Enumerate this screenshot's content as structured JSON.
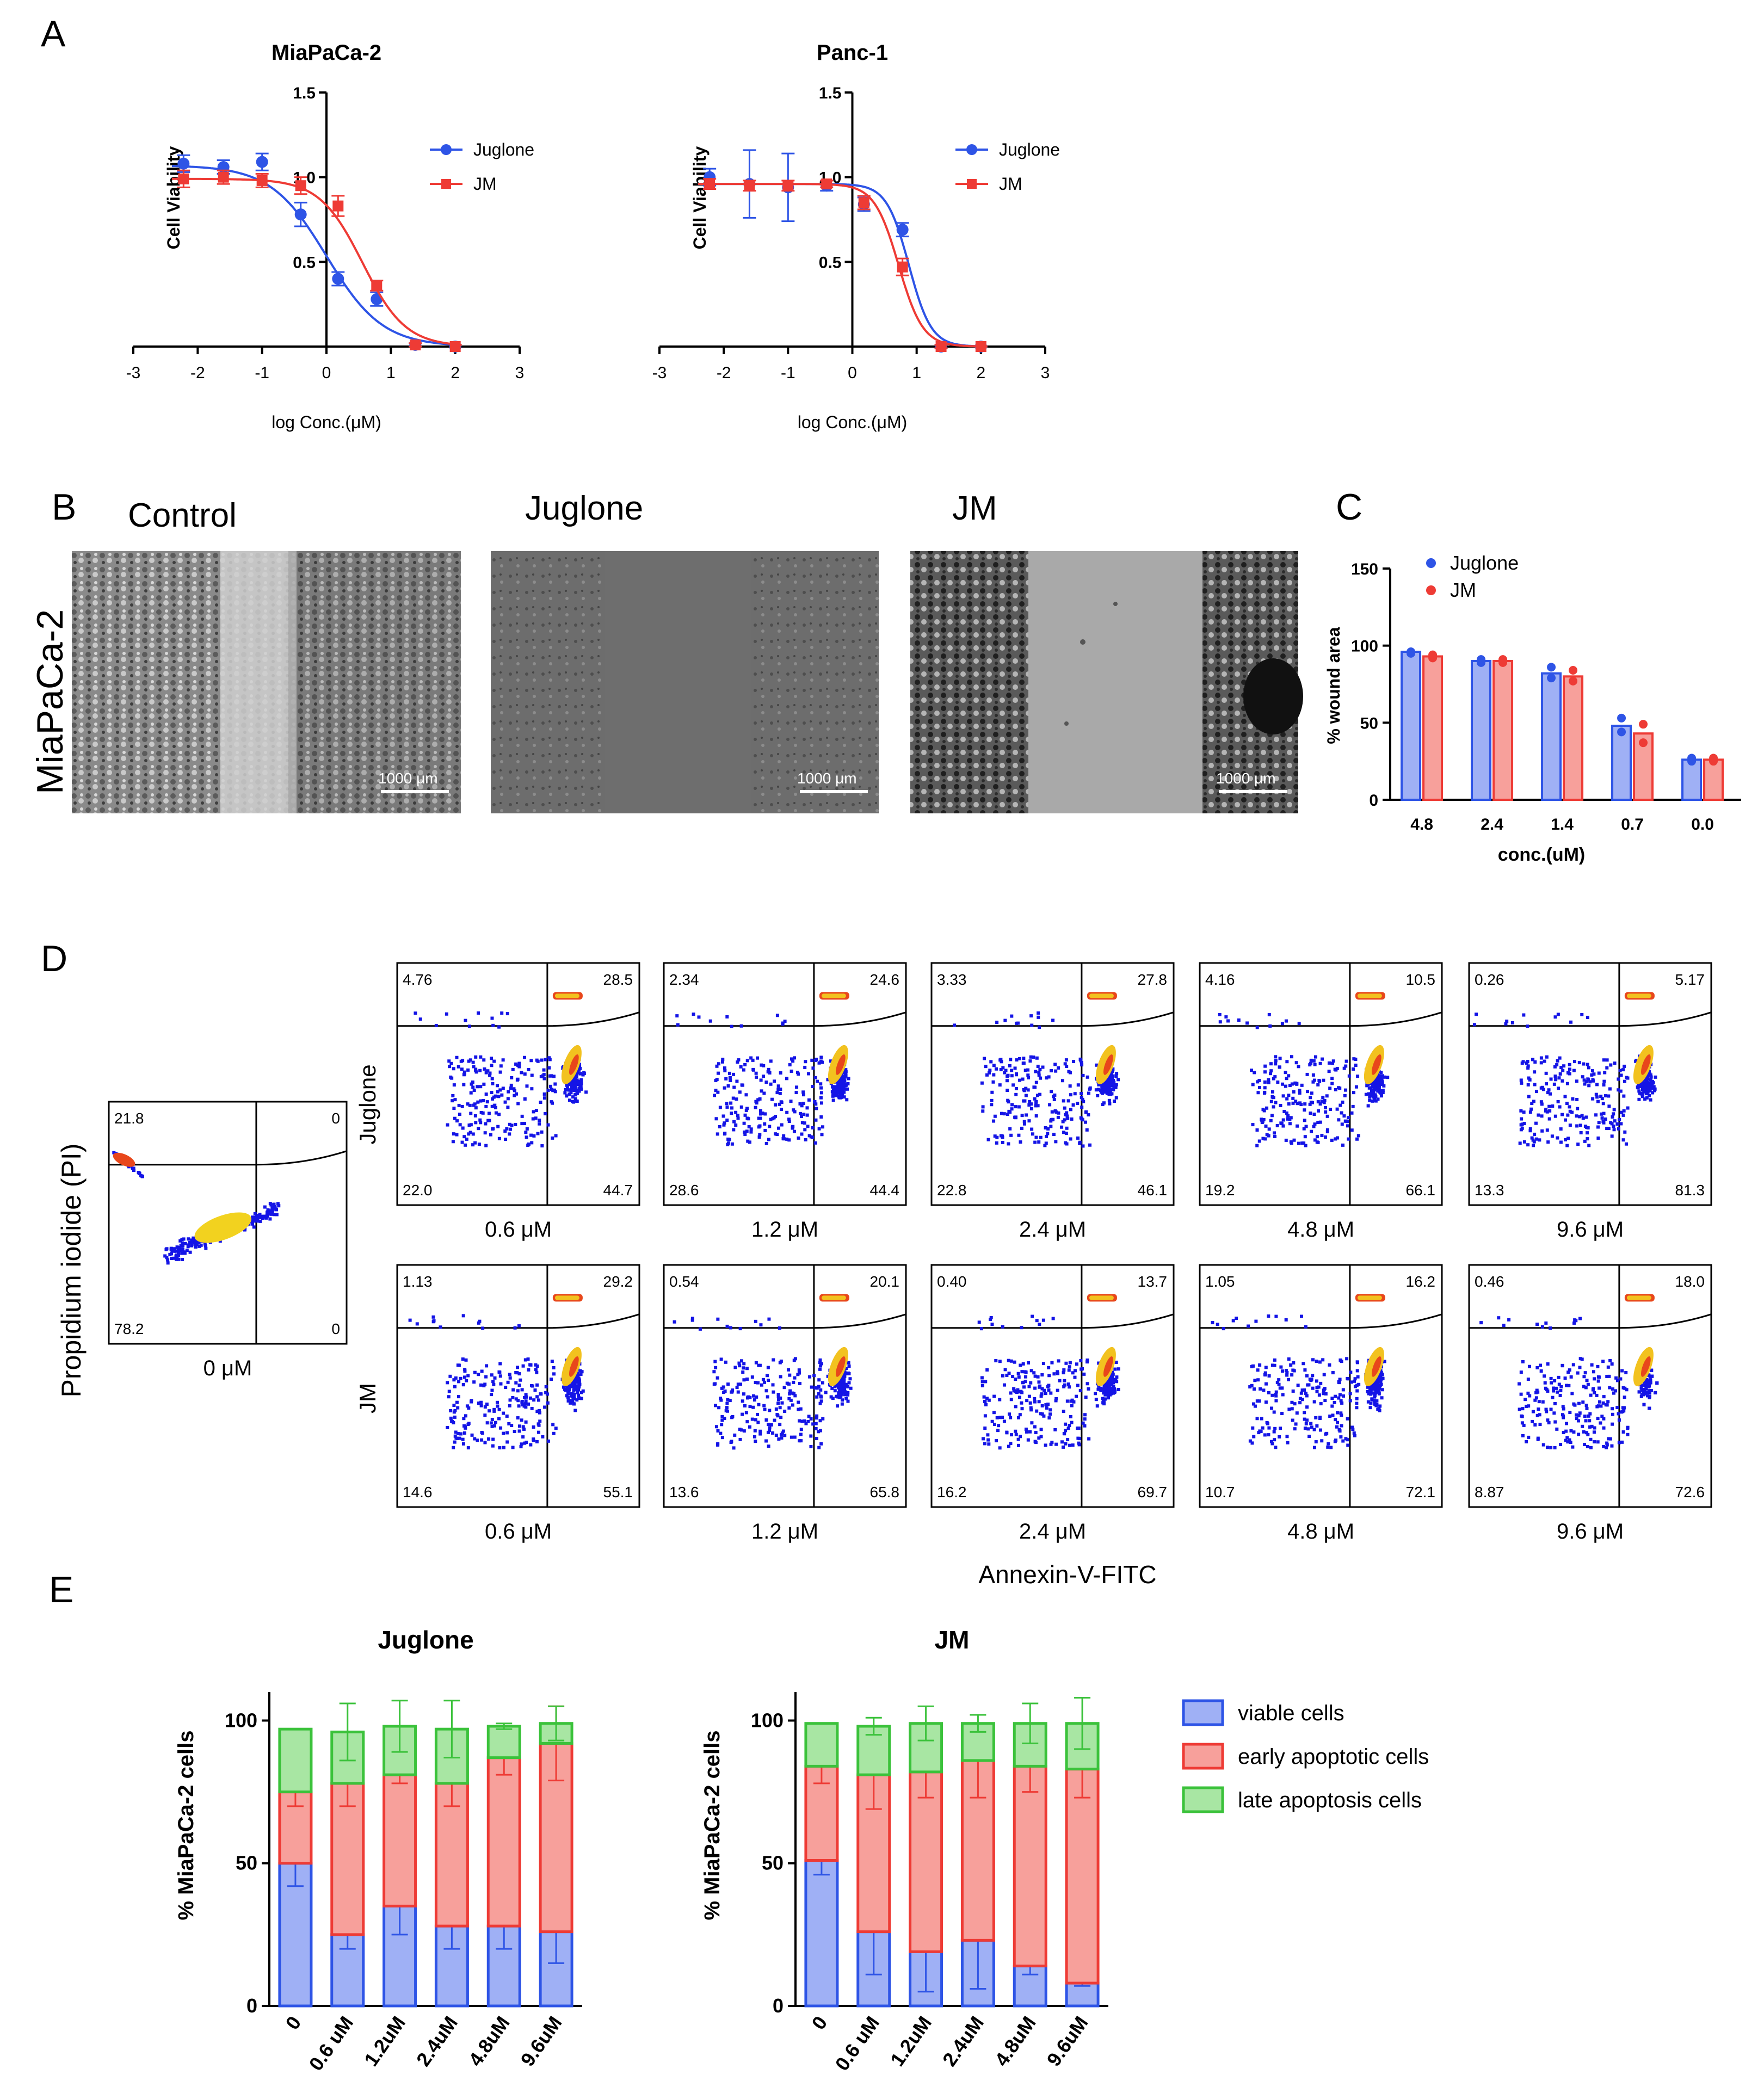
{
  "panel_letters": [
    "A",
    "B",
    "C",
    "D",
    "E"
  ],
  "colors": {
    "juglone_blue": "#2e54e6",
    "jm_red": "#ee3b35",
    "viable_fill": "#9fb0f5",
    "viable_edge": "#2e54e6",
    "early_fill": "#f7a09b",
    "early_edge": "#ee3b35",
    "late_fill": "#a8e6a3",
    "late_edge": "#3bc23b"
  },
  "panel_b": {
    "column_titles": [
      "Control",
      "Juglone",
      "JM"
    ],
    "row_label": "MiaPaCa-2",
    "scale_bar_label": "1000 μm"
  },
  "panel_d": {
    "y_axis_label": "Propidium iodide (PI)",
    "x_axis_label": "Annexin-V-FITC",
    "row_labels": [
      "Juglone",
      "JM"
    ],
    "control": {
      "conc": "0 μM",
      "q": [
        "21.8",
        "0",
        "78.2",
        "0"
      ]
    },
    "juglone": [
      {
        "conc": "0.6 μM",
        "q": [
          "4.76",
          "28.5",
          "22.0",
          "44.7"
        ]
      },
      {
        "conc": "1.2 μM",
        "q": [
          "2.34",
          "24.6",
          "28.6",
          "44.4"
        ]
      },
      {
        "conc": "2.4 μM",
        "q": [
          "3.33",
          "27.8",
          "22.8",
          "46.1"
        ]
      },
      {
        "conc": "4.8 μM",
        "q": [
          "4.16",
          "10.5",
          "19.2",
          "66.1"
        ]
      },
      {
        "conc": "9.6 μM",
        "q": [
          "0.26",
          "5.17",
          "13.3",
          "81.3"
        ]
      }
    ],
    "jm": [
      {
        "conc": "0.6 μM",
        "q": [
          "1.13",
          "29.2",
          "14.6",
          "55.1"
        ]
      },
      {
        "conc": "1.2 μM",
        "q": [
          "0.54",
          "20.1",
          "13.6",
          "65.8"
        ]
      },
      {
        "conc": "2.4 μM",
        "q": [
          "0.40",
          "13.7",
          "16.2",
          "69.7"
        ]
      },
      {
        "conc": "4.8 μM",
        "q": [
          "1.05",
          "16.2",
          "10.7",
          "72.1"
        ]
      },
      {
        "conc": "9.6 μM",
        "q": [
          "0.46",
          "18.0",
          "8.87",
          "72.6"
        ]
      }
    ]
  },
  "chart_data": [
    {
      "id": "A1",
      "type": "line",
      "title": "MiaPaCa-2",
      "xlabel": "log Conc.(μM)",
      "ylabel": "Cell Viability",
      "xlim": [
        -3,
        3
      ],
      "ylim": [
        0,
        1.5
      ],
      "xticks": [
        "-3",
        "-2",
        "-1",
        "0",
        "1",
        "2",
        "3"
      ],
      "yticks": [
        "0.5",
        "1.0",
        "1.5"
      ],
      "legend": "top-right",
      "series": [
        {
          "name": "Juglone",
          "x": [
            -2.22,
            -1.6,
            -1.0,
            -0.4,
            0.18,
            0.78,
            1.38,
            2.0
          ],
          "y": [
            1.08,
            1.06,
            1.09,
            0.78,
            0.4,
            0.28,
            0.01,
            0.0
          ],
          "err": [
            0.05,
            0.04,
            0.05,
            0.07,
            0.04,
            0.04,
            0.01,
            0.0
          ],
          "curve": {
            "top": 1.07,
            "bottom": 0.0,
            "logIC50": 0.0,
            "hill": 1.0
          }
        },
        {
          "name": "JM",
          "x": [
            -2.22,
            -1.6,
            -1.0,
            -0.4,
            0.18,
            0.78,
            1.38,
            2.0
          ],
          "y": [
            0.99,
            1.0,
            0.98,
            0.95,
            0.83,
            0.36,
            0.01,
            0.0
          ],
          "err": [
            0.05,
            0.04,
            0.04,
            0.05,
            0.06,
            0.03,
            0.01,
            0.0
          ],
          "curve": {
            "top": 0.99,
            "bottom": 0.0,
            "logIC50": 0.56,
            "hill": 1.3
          }
        }
      ]
    },
    {
      "id": "A2",
      "type": "line",
      "title": "Panc-1",
      "xlabel": "log Conc.(μM)",
      "ylabel": "Cell Viability",
      "xlim": [
        -3,
        3
      ],
      "ylim": [
        0,
        1.5
      ],
      "xticks": [
        "-3",
        "-2",
        "-1",
        "0",
        "1",
        "2",
        "3"
      ],
      "yticks": [
        "0.5",
        "1.0",
        "1.5"
      ],
      "legend": "top-right",
      "series": [
        {
          "name": "Juglone",
          "x": [
            -2.22,
            -1.6,
            -1.0,
            -0.4,
            0.18,
            0.78,
            1.38,
            2.0
          ],
          "y": [
            1.0,
            0.96,
            0.94,
            0.95,
            0.84,
            0.69,
            0.0,
            0.0
          ],
          "err": [
            0.05,
            0.2,
            0.2,
            0.03,
            0.04,
            0.04,
            0.01,
            0.0
          ],
          "curve": {
            "top": 0.96,
            "bottom": 0.0,
            "logIC50": 0.88,
            "hill": 2.5
          }
        },
        {
          "name": "JM",
          "x": [
            -2.22,
            -1.6,
            -1.0,
            -0.4,
            0.18,
            0.78,
            1.38,
            2.0
          ],
          "y": [
            0.96,
            0.95,
            0.95,
            0.96,
            0.85,
            0.47,
            0.0,
            0.0
          ],
          "err": [
            0.03,
            0.03,
            0.03,
            0.02,
            0.04,
            0.05,
            0.01,
            0.0
          ],
          "curve": {
            "top": 0.96,
            "bottom": 0.0,
            "logIC50": 0.72,
            "hill": 2.3
          }
        }
      ]
    },
    {
      "id": "C",
      "type": "bar",
      "title": "",
      "xlabel": "conc.(uM)",
      "ylabel": "% wound area",
      "categories": [
        "4.8",
        "2.4",
        "1.4",
        "0.7",
        "0.0"
      ],
      "ylim": [
        0,
        150
      ],
      "yticks": [
        "0",
        "50",
        "100",
        "150"
      ],
      "legend": "top-left",
      "series": [
        {
          "name": "Juglone",
          "values": [
            96,
            90,
            82,
            48,
            26
          ],
          "points": [
            [
              95,
              96
            ],
            [
              89,
              91
            ],
            [
              79,
              86
            ],
            [
              44,
              53
            ],
            [
              25,
              27
            ]
          ]
        },
        {
          "name": "JM",
          "values": [
            93,
            90,
            80,
            43,
            26
          ],
          "points": [
            [
              92,
              94
            ],
            [
              89,
              91
            ],
            [
              77,
              84
            ],
            [
              37,
              49
            ],
            [
              25,
              27
            ]
          ]
        }
      ]
    },
    {
      "id": "E1",
      "type": "bar",
      "stacked": true,
      "title": "Juglone",
      "xlabel": "",
      "ylabel": "% MiaPaCa-2 cells",
      "categories": [
        "0",
        "0.6 uM",
        "1.2uM",
        "2.4uM",
        "4.8uM",
        "9.6uM"
      ],
      "ylim": [
        0,
        110
      ],
      "yticks": [
        "0",
        "50",
        "100"
      ],
      "series": [
        {
          "name": "viable cells",
          "values": [
            50,
            25,
            35,
            28,
            28,
            26
          ],
          "err": [
            8,
            5,
            10,
            8,
            8,
            11
          ]
        },
        {
          "name": "early apoptotic cells",
          "values": [
            25,
            53,
            46,
            50,
            59,
            66
          ],
          "err": [
            5,
            8,
            3,
            8,
            6,
            13
          ]
        },
        {
          "name": "late apoptosis cells",
          "values": [
            22,
            18,
            17,
            19,
            11,
            7
          ],
          "err": [
            0,
            10,
            9,
            10,
            1,
            6
          ]
        }
      ]
    },
    {
      "id": "E2",
      "type": "bar",
      "stacked": true,
      "title": "JM",
      "xlabel": "",
      "ylabel": "% MiaPaCa-2 cells",
      "categories": [
        "0",
        "0.6 uM",
        "1.2uM",
        "2.4uM",
        "4.8uM",
        "9.6uM"
      ],
      "ylim": [
        0,
        110
      ],
      "yticks": [
        "0",
        "50",
        "100"
      ],
      "legend": "right",
      "series": [
        {
          "name": "viable cells",
          "values": [
            51,
            26,
            19,
            23,
            14,
            8
          ],
          "err": [
            5,
            15,
            14,
            17,
            3,
            1
          ]
        },
        {
          "name": "early apoptotic cells",
          "values": [
            33,
            55,
            63,
            63,
            70,
            75
          ],
          "err": [
            6,
            12,
            9,
            13,
            9,
            10
          ]
        },
        {
          "name": "late apoptosis cells",
          "values": [
            15,
            17,
            17,
            13,
            15,
            16
          ],
          "err": [
            0,
            3,
            6,
            3,
            7,
            9
          ]
        }
      ]
    }
  ]
}
